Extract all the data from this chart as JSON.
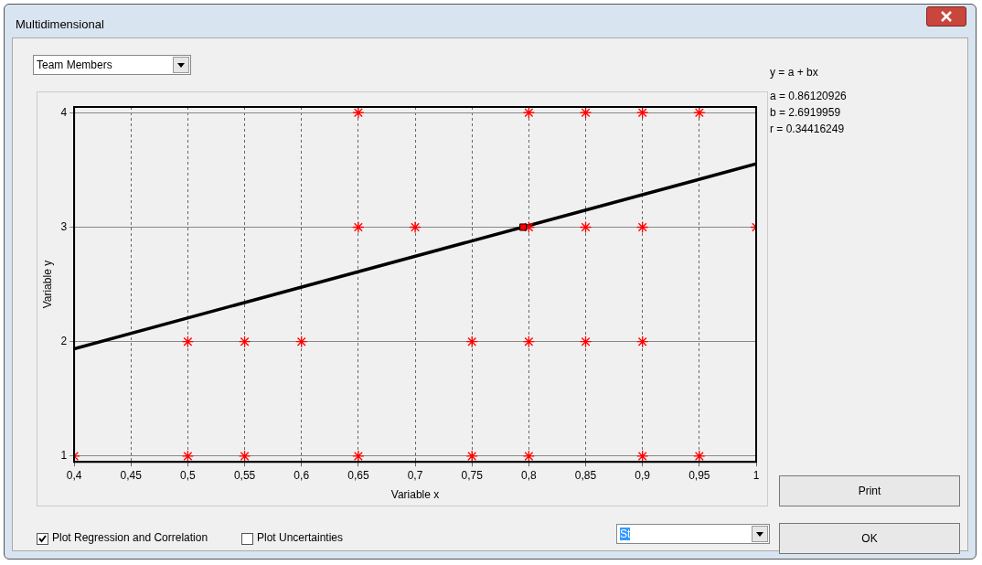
{
  "chart_data": {
    "type": "scatter",
    "title": "Multidimensional",
    "xlabel": "Variable x",
    "ylabel": "Variable y",
    "annotations": [
      "Team Members",
      "y = a + bx",
      "a = 0.86120926",
      "b = 2.6919959",
      "r = 0.34416249",
      "Print",
      "OK",
      "Plot Regression and Correlation",
      "Plot Uncertainties",
      "St"
    ],
    "xlim": [
      0.4,
      1
    ],
    "ylim": [
      0.95,
      4.05
    ],
    "xticks": [
      {
        "value": 0.4,
        "label": "0,4"
      },
      {
        "value": 0.45,
        "label": "0,45"
      },
      {
        "value": 0.5,
        "label": "0,5"
      },
      {
        "value": 0.55,
        "label": "0,55"
      },
      {
        "value": 0.6,
        "label": "0,6"
      },
      {
        "value": 0.65,
        "label": "0,65"
      },
      {
        "value": 0.7,
        "label": "0,7"
      },
      {
        "value": 0.75,
        "label": "0,75"
      },
      {
        "value": 0.8,
        "label": "0,8"
      },
      {
        "value": 0.85,
        "label": "0,85"
      },
      {
        "value": 0.9,
        "label": "0,9"
      },
      {
        "value": 0.95,
        "label": "0,95"
      },
      {
        "value": 1,
        "label": "1"
      }
    ],
    "yticks": [
      1,
      2,
      3,
      4
    ],
    "grid": true,
    "legend": false,
    "marker": "cross",
    "series": [
      {
        "type": "scatter",
        "color": "#ff0000",
        "x": [
          0.65,
          0.8,
          0.85,
          0.9,
          0.95,
          0.65,
          0.7,
          0.8,
          0.85,
          0.9,
          1,
          0.5,
          0.55,
          0.6,
          0.75,
          0.8,
          0.85,
          0.9,
          0.4,
          0.5,
          0.55,
          0.65,
          0.75,
          0.8,
          0.9,
          0.95
        ],
        "values": [
          4,
          4,
          4,
          4,
          4,
          3,
          3,
          3,
          3,
          3,
          3,
          2,
          2,
          2,
          2,
          2,
          2,
          2,
          1,
          1,
          1,
          1,
          1,
          1,
          1,
          1
        ]
      },
      {
        "type": "line",
        "color": "#000000",
        "marker": "none",
        "x": [
          0.4,
          1
        ],
        "values": [
          1.938,
          3.553
        ]
      },
      {
        "type": "scatter",
        "color": "#ff0000",
        "marker": "square",
        "x": [
          0.795
        ],
        "values": [
          3
        ]
      }
    ]
  }
}
